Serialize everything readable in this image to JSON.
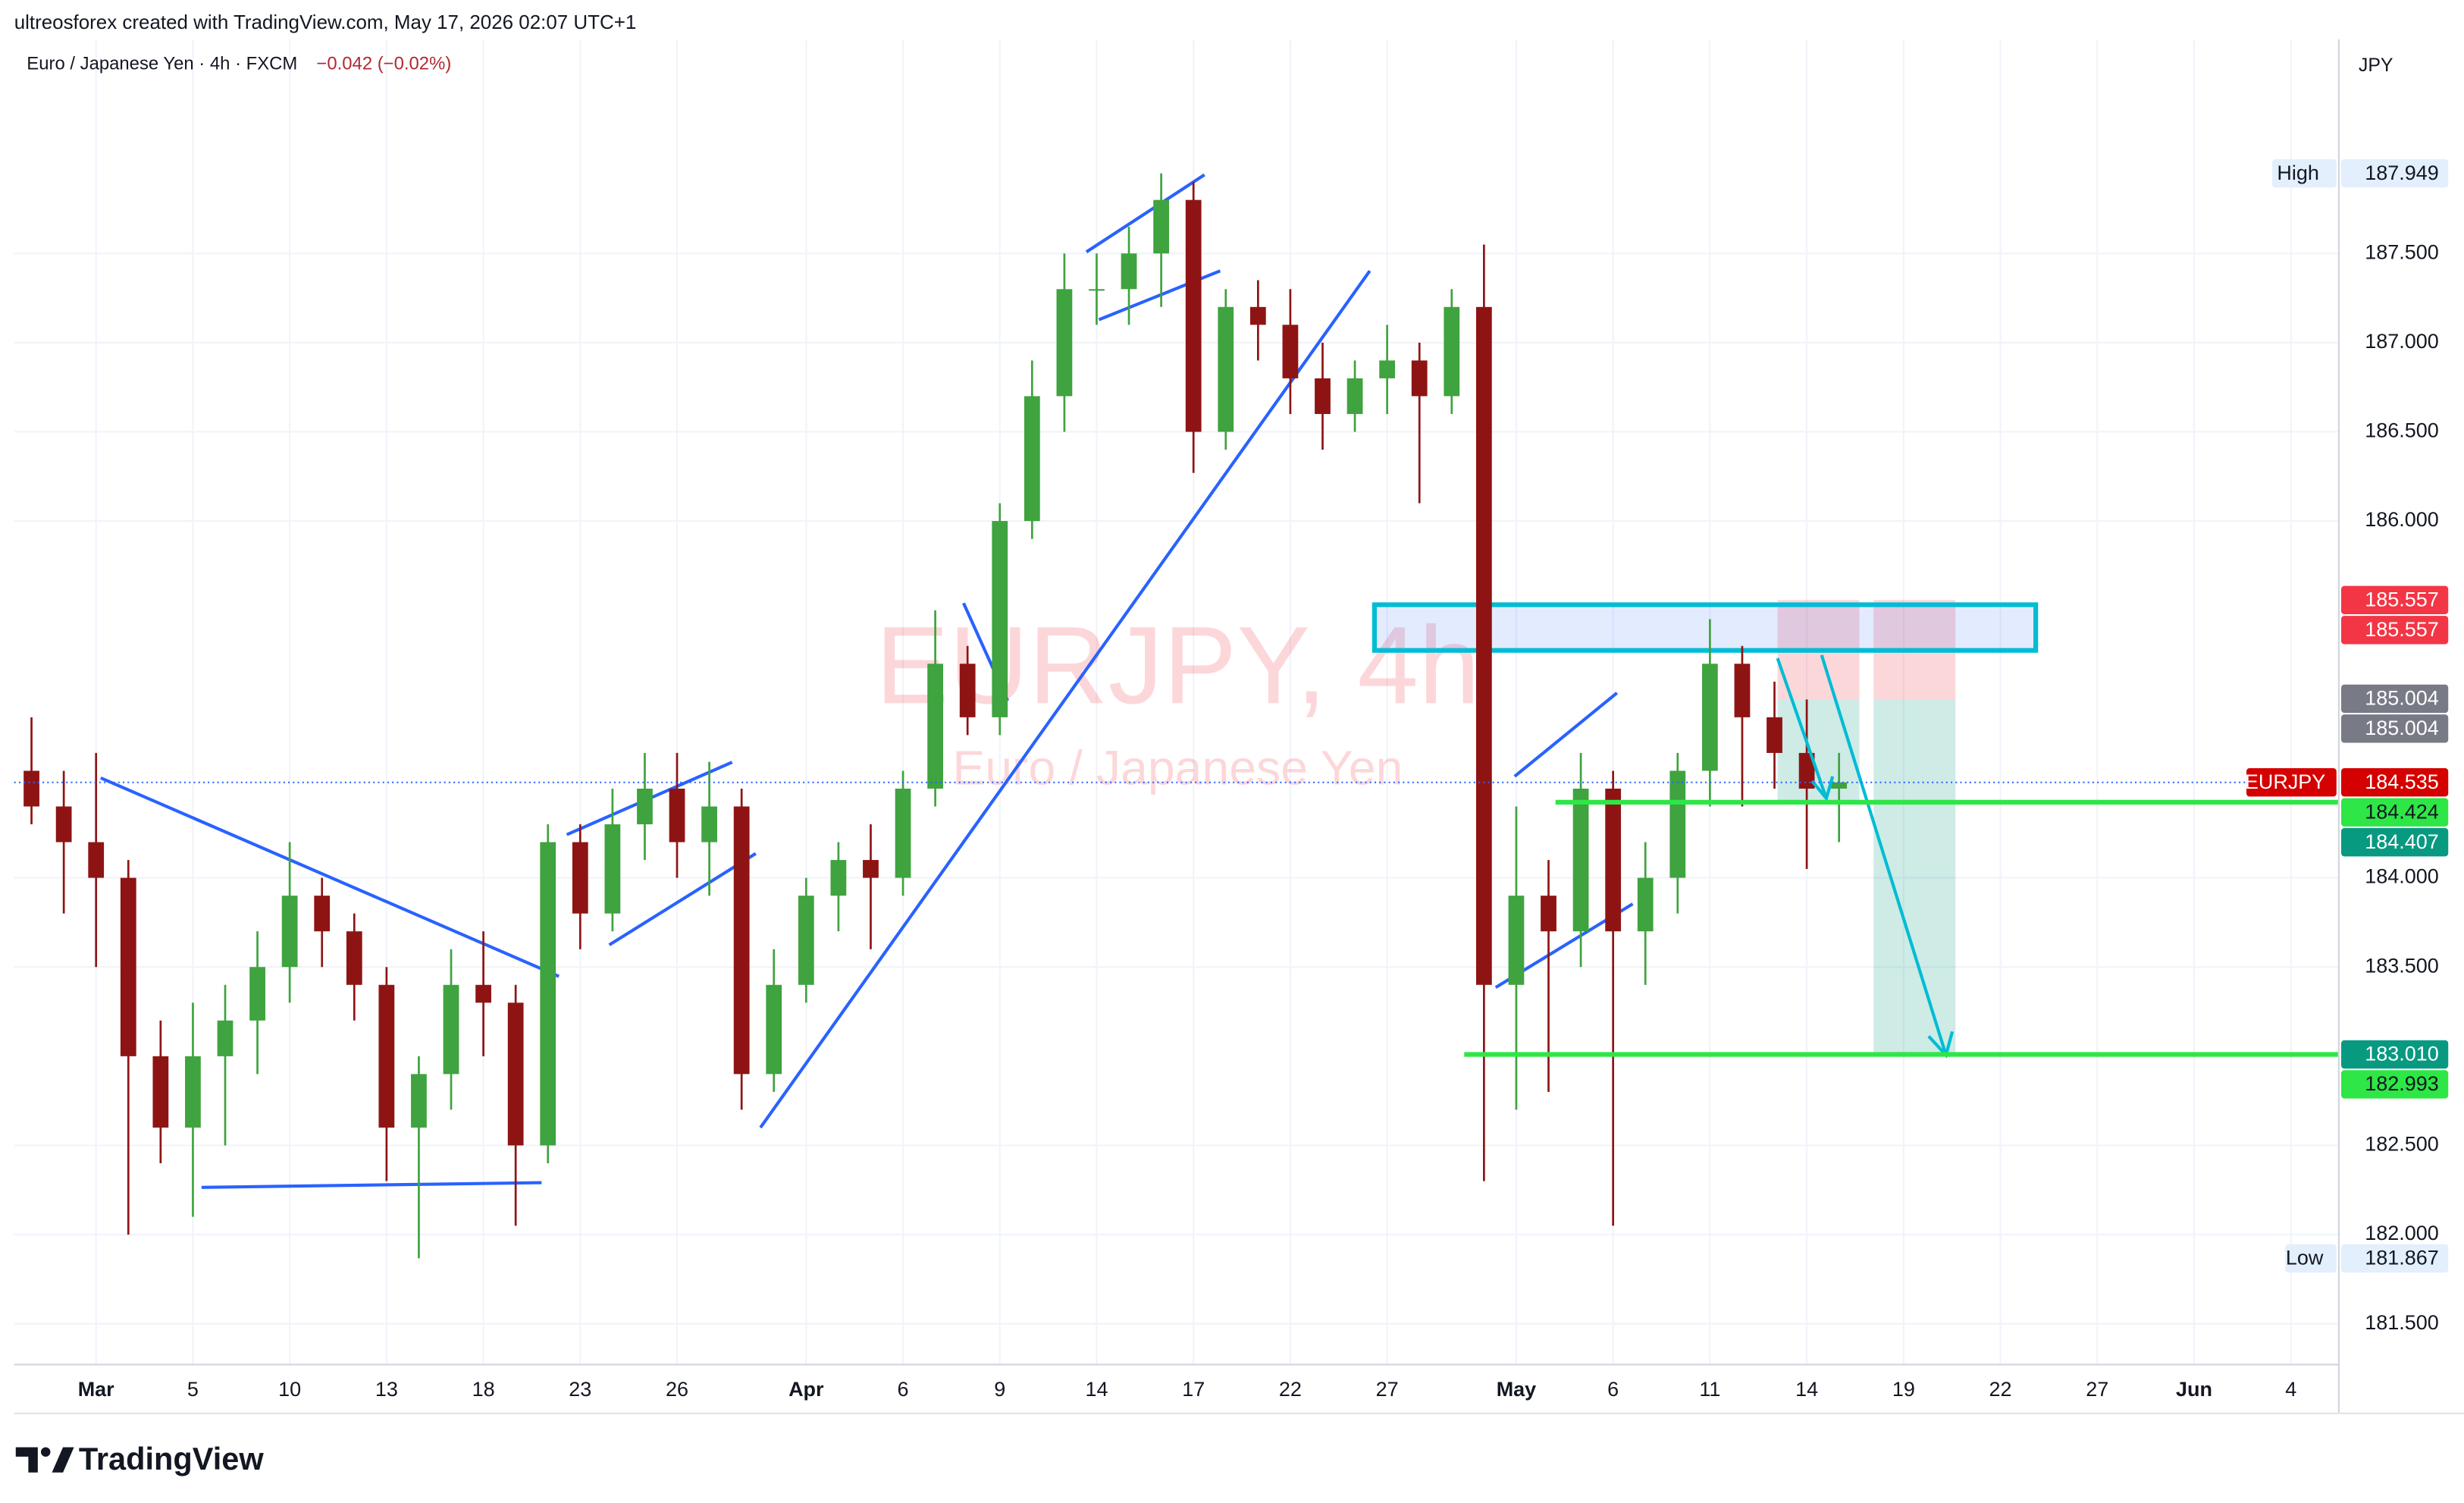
{
  "header": {
    "caption": "ultreosforex created with TradingView.com, May 17, 2026 02:07 UTC+1",
    "symbol_info": "Euro / Japanese Yen · 4h · FXCM",
    "change": "−0.042 (−0.02%)",
    "currency": "JPY",
    "brand": "TradingView"
  },
  "chart_data": {
    "type": "candlestick",
    "title": "EURJPY, 4h",
    "subtitle": "Euro / Japanese Yen",
    "up_color": "#3fa33f",
    "down_color": "#8e1414",
    "grid": true,
    "x": [
      -2,
      -1,
      0,
      1,
      2,
      3,
      4,
      5,
      6,
      7,
      8,
      9,
      10,
      11,
      12,
      13,
      14,
      15,
      16,
      17,
      18,
      19,
      20,
      21,
      22,
      23,
      24,
      25,
      26,
      27,
      28,
      29,
      30,
      31,
      32,
      33,
      34,
      35,
      36,
      37,
      38,
      39,
      40,
      41,
      42,
      43,
      44,
      45,
      46,
      47,
      48,
      49,
      50,
      51,
      52,
      53,
      54
    ],
    "open": [
      184.6,
      184.4,
      184.2,
      184.0,
      183.0,
      182.6,
      183.0,
      183.2,
      183.5,
      183.9,
      183.7,
      183.4,
      182.6,
      182.9,
      183.4,
      183.3,
      182.5,
      184.2,
      183.8,
      184.3,
      184.5,
      184.2,
      184.4,
      182.9,
      183.4,
      183.9,
      184.1,
      184.0,
      184.5,
      185.2,
      184.9,
      186.0,
      186.7,
      187.3,
      187.3,
      187.5,
      187.8,
      186.5,
      187.2,
      187.1,
      186.8,
      186.6,
      186.8,
      186.9,
      186.7,
      187.2,
      183.4,
      183.9,
      183.7,
      184.5,
      183.7,
      184.0,
      184.6,
      185.2,
      184.9,
      184.7,
      184.5
    ],
    "high": [
      184.9,
      184.6,
      184.7,
      184.1,
      183.2,
      183.3,
      183.4,
      183.7,
      184.2,
      184.0,
      183.8,
      183.5,
      183.0,
      183.6,
      183.7,
      183.4,
      184.3,
      184.3,
      184.5,
      184.7,
      184.7,
      184.65,
      184.5,
      183.6,
      184.0,
      184.2,
      184.3,
      184.6,
      185.5,
      185.3,
      186.1,
      186.9,
      187.5,
      187.5,
      187.65,
      187.949,
      187.9,
      187.3,
      187.35,
      187.3,
      187.0,
      186.9,
      187.1,
      187.0,
      187.3,
      187.55,
      184.4,
      184.1,
      184.7,
      184.6,
      184.2,
      184.7,
      185.45,
      185.3,
      185.1,
      185.0,
      184.7
    ],
    "low": [
      184.3,
      183.8,
      183.5,
      182.0,
      182.4,
      182.1,
      182.5,
      182.9,
      183.3,
      183.5,
      183.2,
      182.3,
      181.867,
      182.7,
      183.0,
      182.05,
      182.4,
      183.6,
      183.7,
      184.1,
      184.0,
      183.9,
      182.7,
      182.8,
      183.3,
      183.7,
      183.6,
      183.9,
      184.4,
      184.8,
      184.8,
      185.9,
      186.5,
      187.1,
      187.1,
      187.2,
      186.27,
      186.4,
      186.9,
      186.6,
      186.4,
      186.5,
      186.6,
      186.1,
      186.6,
      182.3,
      182.7,
      182.8,
      183.5,
      182.05,
      183.4,
      183.8,
      184.4,
      184.4,
      184.5,
      184.05,
      184.2
    ],
    "close": [
      184.4,
      184.2,
      184.0,
      183.0,
      182.6,
      183.0,
      183.2,
      183.5,
      183.9,
      183.7,
      183.4,
      182.6,
      182.9,
      183.4,
      183.3,
      182.5,
      184.2,
      183.8,
      184.3,
      184.5,
      184.2,
      184.4,
      182.9,
      183.4,
      183.9,
      184.1,
      184.0,
      184.5,
      185.2,
      184.9,
      186.0,
      186.7,
      187.3,
      187.3,
      187.5,
      187.8,
      186.5,
      187.2,
      187.1,
      186.8,
      186.6,
      186.8,
      186.9,
      186.7,
      187.2,
      183.4,
      183.9,
      183.7,
      184.5,
      183.7,
      184.0,
      184.6,
      185.2,
      184.9,
      184.7,
      184.5,
      184.535
    ],
    "xlim": [
      -2.537,
      69.46
    ],
    "ylim": [
      181.276,
      188.7
    ],
    "xticks": [
      {
        "value": 0,
        "label": "Mar"
      },
      {
        "value": 3,
        "label": "5"
      },
      {
        "value": 6,
        "label": "10"
      },
      {
        "value": 9,
        "label": "13"
      },
      {
        "value": 12,
        "label": "18"
      },
      {
        "value": 15,
        "label": "23"
      },
      {
        "value": 18,
        "label": "26"
      },
      {
        "value": 22,
        "label": "Apr"
      },
      {
        "value": 25,
        "label": "6"
      },
      {
        "value": 28,
        "label": "9"
      },
      {
        "value": 31,
        "label": "14"
      },
      {
        "value": 34,
        "label": "17"
      },
      {
        "value": 37,
        "label": "22"
      },
      {
        "value": 40,
        "label": "27"
      },
      {
        "value": 44,
        "label": "May"
      },
      {
        "value": 47,
        "label": "6"
      },
      {
        "value": 50,
        "label": "11"
      },
      {
        "value": 53,
        "label": "14"
      },
      {
        "value": 56,
        "label": "19"
      },
      {
        "value": 59,
        "label": "22"
      },
      {
        "value": 62,
        "label": "27"
      },
      {
        "value": 65,
        "label": "Jun"
      },
      {
        "value": 68,
        "label": "4"
      }
    ],
    "yticks": [
      {
        "value": 181.5,
        "label": "181.500"
      },
      {
        "value": 182,
        "label": "182.000"
      },
      {
        "value": 182.5,
        "label": "182.500"
      },
      {
        "value": 183.5,
        "label": "183.500"
      },
      {
        "value": 184,
        "label": "184.000"
      },
      {
        "value": 186,
        "label": "186.000"
      },
      {
        "value": 186.5,
        "label": "186.500"
      },
      {
        "value": 187,
        "label": "187.000"
      },
      {
        "value": 187.5,
        "label": "187.500"
      }
    ],
    "price_labels": [
      {
        "tag": "High",
        "value": 187.949,
        "color": "#e3effd",
        "text_color": "#131722"
      },
      {
        "value": 185.557,
        "color": "#f23645",
        "text_color": "#ffffff"
      },
      {
        "value": 185.557,
        "color": "#f23645",
        "text_color": "#ffffff"
      },
      {
        "value": 185.004,
        "color": "#787b86",
        "text_color": "#ffffff"
      },
      {
        "value": 185.004,
        "color": "#787b86",
        "text_color": "#ffffff"
      },
      {
        "tag": "EURJPY",
        "value": 184.535,
        "color": "#d50000",
        "text_color": "#ffffff"
      },
      {
        "value": 184.424,
        "color": "#2ee646",
        "text_color": "#131722"
      },
      {
        "value": 184.407,
        "color": "#089981",
        "text_color": "#ffffff"
      },
      {
        "value": 183.01,
        "label": "183.010",
        "color": "#089981",
        "text_color": "#ffffff"
      },
      {
        "value": 182.993,
        "color": "#2ee646",
        "text_color": "#131722"
      },
      {
        "tag": "Low",
        "value": 181.867,
        "color": "#e3effd",
        "text_color": "#131722"
      }
    ]
  }
}
